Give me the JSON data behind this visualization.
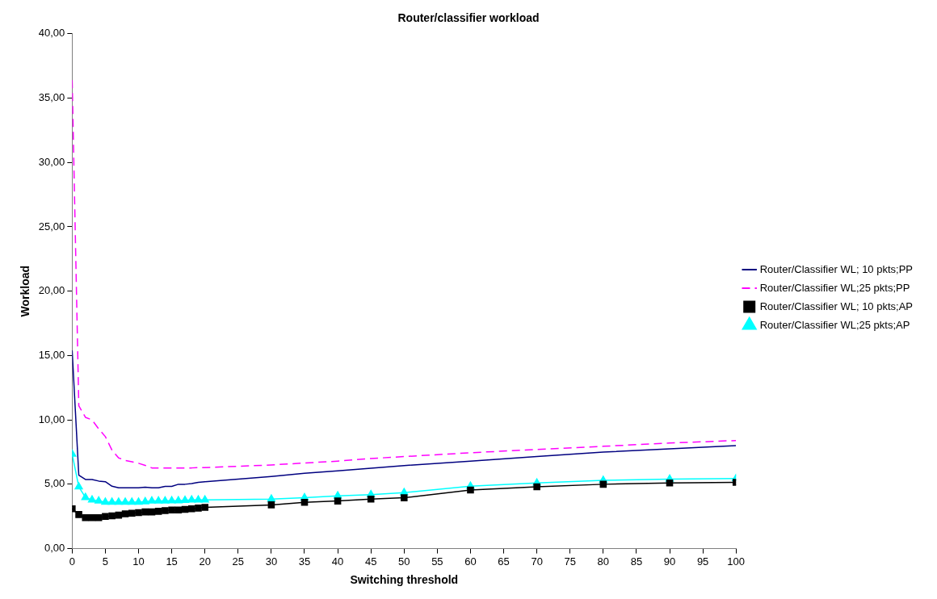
{
  "chart_data": {
    "type": "line",
    "title": "Router/classifier workload",
    "xlabel": "Switching threshold",
    "ylabel": "Workload",
    "x": [
      0,
      1,
      2,
      3,
      4,
      5,
      6,
      7,
      8,
      9,
      10,
      11,
      12,
      13,
      14,
      15,
      16,
      17,
      18,
      19,
      20,
      30,
      35,
      40,
      45,
      50,
      60,
      70,
      80,
      90,
      100
    ],
    "series": [
      {
        "name": "Router/Classifier WL; 10 pkts;PP",
        "color": "#000080",
        "marker": "none",
        "line_style": "solid",
        "values": [
          15.4,
          5.7,
          5.37,
          5.37,
          5.25,
          5.2,
          4.85,
          4.73,
          4.73,
          4.73,
          4.73,
          4.78,
          4.73,
          4.73,
          4.84,
          4.84,
          5.0,
          5.0,
          5.05,
          5.15,
          5.2,
          5.6,
          5.85,
          6.05,
          6.25,
          6.45,
          6.8,
          7.15,
          7.5,
          7.75,
          8.0
        ]
      },
      {
        "name": "Router/Classifier WL;25 pkts;PP",
        "color": "#ff00ff",
        "marker": "none",
        "line_style": "dashed",
        "values": [
          36.4,
          11.1,
          10.2,
          10.0,
          9.3,
          8.7,
          7.65,
          7.05,
          6.85,
          6.75,
          6.63,
          6.47,
          6.27,
          6.27,
          6.27,
          6.27,
          6.27,
          6.27,
          6.27,
          6.3,
          6.3,
          6.5,
          6.65,
          6.8,
          7.0,
          7.15,
          7.45,
          7.7,
          7.95,
          8.2,
          8.4
        ]
      },
      {
        "name": "Router/Classifier WL; 10 pkts;AP",
        "color": "#000000",
        "marker": "square",
        "line_style": "solid",
        "values": [
          3.1,
          2.65,
          2.4,
          2.4,
          2.4,
          2.5,
          2.55,
          2.6,
          2.7,
          2.75,
          2.8,
          2.85,
          2.85,
          2.9,
          2.95,
          3.0,
          3.0,
          3.05,
          3.1,
          3.15,
          3.2,
          3.4,
          3.6,
          3.7,
          3.85,
          3.95,
          4.55,
          4.8,
          5.0,
          5.1,
          5.15
        ]
      },
      {
        "name": "Router/Classifier WL;25 pkts;AP",
        "color": "#00ffff",
        "marker": "triangle",
        "line_style": "solid",
        "values": [
          7.35,
          4.8,
          3.98,
          3.78,
          3.7,
          3.61,
          3.61,
          3.61,
          3.61,
          3.61,
          3.61,
          3.65,
          3.7,
          3.7,
          3.7,
          3.72,
          3.72,
          3.75,
          3.78,
          3.78,
          3.78,
          3.85,
          3.95,
          4.1,
          4.2,
          4.35,
          4.85,
          5.1,
          5.3,
          5.4,
          5.45
        ]
      }
    ],
    "xlim": [
      0,
      100
    ],
    "xticks": [
      0,
      5,
      10,
      15,
      20,
      25,
      30,
      35,
      40,
      45,
      50,
      55,
      60,
      65,
      70,
      75,
      80,
      85,
      90,
      95,
      100
    ],
    "ylim": [
      0,
      40
    ],
    "yticks": [
      {
        "value": 0,
        "label": "0,00"
      },
      {
        "value": 5,
        "label": "5,00"
      },
      {
        "value": 10,
        "label": "10,00"
      },
      {
        "value": 15,
        "label": "15,00"
      },
      {
        "value": 20,
        "label": "20,00"
      },
      {
        "value": 25,
        "label": "25,00"
      },
      {
        "value": 30,
        "label": "30,00"
      },
      {
        "value": 35,
        "label": "35,00"
      },
      {
        "value": 40,
        "label": "40,00"
      }
    ],
    "grid": false,
    "legend": "right"
  }
}
